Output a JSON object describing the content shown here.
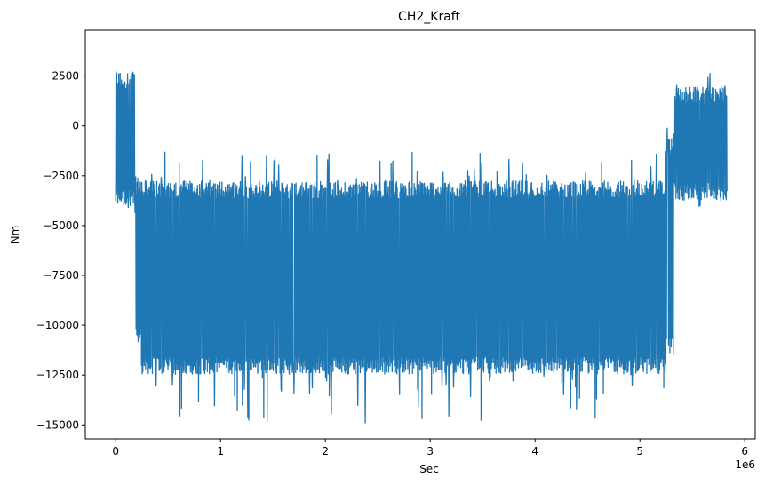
{
  "chart_data": {
    "type": "line",
    "title": "CH2_Kraft",
    "xlabel": "Sec",
    "ylabel": "Nm",
    "x_multiplier_label": "1e6",
    "xlim": [
      -0.29,
      6.1
    ],
    "ylim": [
      -15700,
      4800
    ],
    "x_ticks": [
      0,
      1,
      2,
      3,
      4,
      5,
      6
    ],
    "x_tick_labels": [
      "0",
      "1",
      "2",
      "3",
      "4",
      "5",
      "6"
    ],
    "y_ticks": [
      2500,
      0,
      -2500,
      -5000,
      -7500,
      -10000,
      -12500,
      -15000
    ],
    "y_tick_labels": [
      "2500",
      "0",
      "−2500",
      "−5000",
      "−7500",
      "−10000",
      "−12500",
      "−15000"
    ],
    "grid": false,
    "series": [
      {
        "color": "#1f77b4",
        "x_start": 0,
        "x_end": 5.83,
        "segments": [
          {
            "x": [
              0.0,
              0.19
            ],
            "min": -4700,
            "max": 3850,
            "typical_low": -3600,
            "typical_high": 2300
          },
          {
            "x": [
              0.19,
              0.24
            ],
            "min": -11000,
            "max": -2000,
            "typical_low": -10500,
            "typical_high": -3000
          },
          {
            "x": [
              0.24,
              5.25
            ],
            "min": -14950,
            "max": -1300,
            "typical_low": -12000,
            "typical_high": -3200
          },
          {
            "x": [
              5.25,
              5.33
            ],
            "min": -12000,
            "max": 0,
            "typical_low": -11000,
            "typical_high": -1000
          },
          {
            "x": [
              5.33,
              5.83
            ],
            "min": -4300,
            "max": 3100,
            "typical_low": -3300,
            "typical_high": 1500
          }
        ]
      }
    ]
  }
}
